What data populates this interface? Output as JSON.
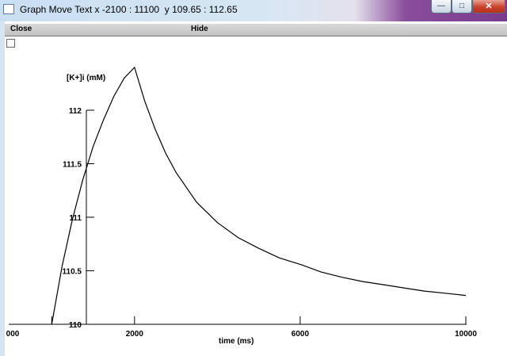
{
  "window": {
    "title": "Graph Move Text x -2100 : 11100  y 109.65 : 112.65",
    "controls": {
      "minimize": "—",
      "maximize": "□",
      "close": "✕"
    }
  },
  "menu": {
    "close_label": "Close",
    "hide_label": "Hide"
  },
  "chart_data": {
    "type": "line",
    "ylabel": "[K+]i (mM)",
    "xlabel": "time (ms)",
    "x_ticks": [
      {
        "value": 0,
        "label": "000"
      },
      {
        "value": 2000,
        "label": "2000"
      },
      {
        "value": 6000,
        "label": "6000"
      },
      {
        "value": 10000,
        "label": "10000"
      }
    ],
    "y_ticks": [
      {
        "value": 110,
        "label": "110"
      },
      {
        "value": 110.5,
        "label": "110.5"
      },
      {
        "value": 111,
        "label": "111"
      },
      {
        "value": 111.5,
        "label": "111.5"
      },
      {
        "value": 112,
        "label": "112"
      }
    ],
    "xlim": [
      -2100,
      11100
    ],
    "ylim": [
      109.65,
      112.65
    ],
    "series": [
      {
        "color": "#000000",
        "points": [
          [
            0,
            110.0
          ],
          [
            250,
            110.54
          ],
          [
            500,
            110.98
          ],
          [
            750,
            111.35
          ],
          [
            1000,
            111.66
          ],
          [
            1250,
            111.91
          ],
          [
            1500,
            112.13
          ],
          [
            1750,
            112.3
          ],
          [
            2000,
            112.4
          ],
          [
            2250,
            112.08
          ],
          [
            2500,
            111.82
          ],
          [
            2750,
            111.6
          ],
          [
            3000,
            111.42
          ],
          [
            3500,
            111.14
          ],
          [
            4000,
            110.95
          ],
          [
            4500,
            110.81
          ],
          [
            5000,
            110.71
          ],
          [
            5500,
            110.62
          ],
          [
            6000,
            110.56
          ],
          [
            6500,
            110.49
          ],
          [
            7000,
            110.44
          ],
          [
            7500,
            110.4
          ],
          [
            8000,
            110.37
          ],
          [
            8500,
            110.34
          ],
          [
            9000,
            110.31
          ],
          [
            9500,
            110.29
          ],
          [
            10000,
            110.27
          ]
        ]
      }
    ]
  }
}
